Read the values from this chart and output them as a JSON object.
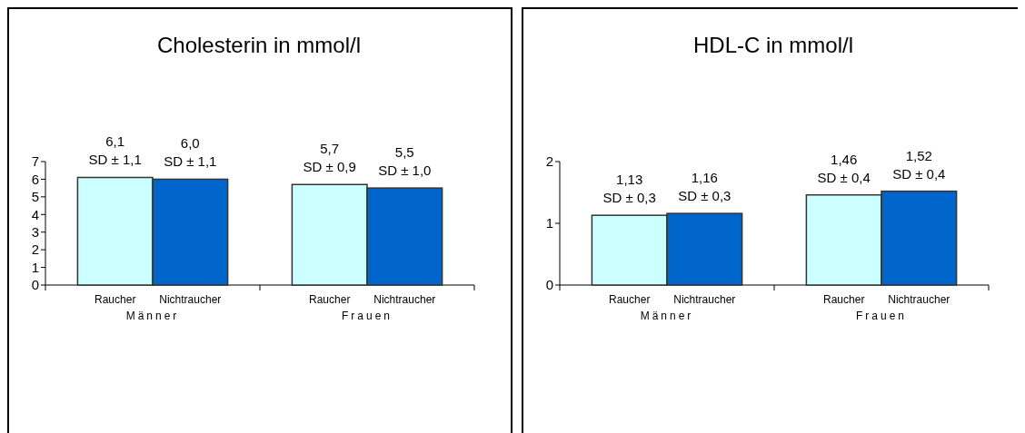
{
  "chart_data": [
    {
      "type": "bar",
      "title": "Cholesterin in mmol/l",
      "categories": [
        "Männer",
        "Frauen"
      ],
      "ylim": [
        0,
        7
      ],
      "yticks": [
        0,
        1,
        2,
        3,
        4,
        5,
        6,
        7
      ],
      "series": [
        {
          "name": "Raucher",
          "color": "#ccffff",
          "values": [
            6.1,
            5.7
          ],
          "value_labels": [
            "6,1\nSD ± 1,1",
            "5,7\nSD ± 0,9"
          ]
        },
        {
          "name": "Nichtraucher",
          "color": "#0066cc",
          "values": [
            6.0,
            5.5
          ],
          "value_labels": [
            "6,0\nSD ± 1,1",
            "5,5\nSD ± 1,0"
          ]
        }
      ]
    },
    {
      "type": "bar",
      "title": "HDL-C in mmol/l",
      "categories": [
        "Männer",
        "Frauen"
      ],
      "ylim": [
        0,
        2
      ],
      "yticks": [
        0,
        1,
        2
      ],
      "series": [
        {
          "name": "Raucher",
          "color": "#ccffff",
          "values": [
            1.13,
            1.46
          ],
          "value_labels": [
            "1,13\nSD ± 0,3",
            "1,46\nSD ± 0,4"
          ]
        },
        {
          "name": "Nichtraucher",
          "color": "#0066cc",
          "values": [
            1.16,
            1.52
          ],
          "value_labels": [
            "1,16\nSD ± 0,3",
            "1,52\nSD ± 0,4"
          ]
        }
      ]
    }
  ]
}
